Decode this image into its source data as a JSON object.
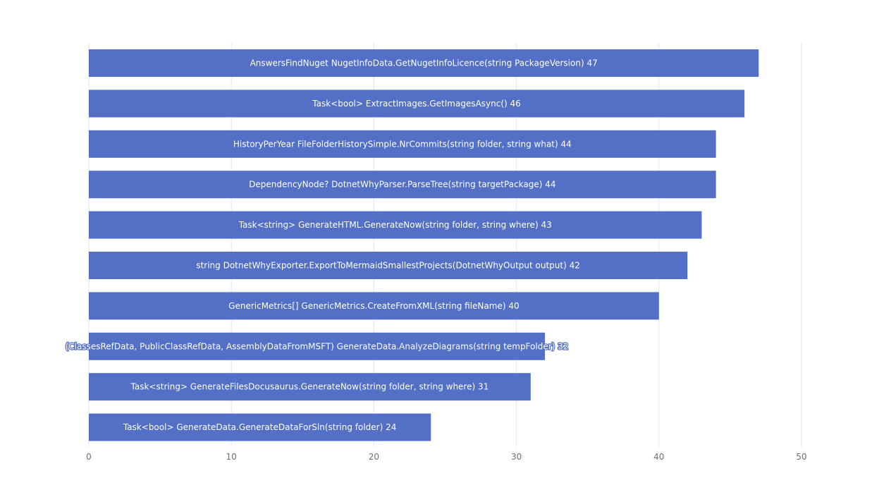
{
  "chart_data": {
    "type": "bar",
    "orientation": "horizontal",
    "title": "",
    "xlabel": "",
    "ylabel": "",
    "xlim": [
      0,
      50
    ],
    "x_ticks": [
      "0",
      "10",
      "20",
      "30",
      "40",
      "50"
    ],
    "grid": true,
    "bar_color": "#5470c6",
    "categories": [
      "AnswersFindNuget NugetInfoData.GetNugetInfoLicence(string PackageVersion)",
      "Task<bool> ExtractImages.GetImagesAsync()",
      "HistoryPerYear FileFolderHistorySimple.NrCommits(string folder, string what)",
      "DependencyNode? DotnetWhyParser.ParseTree(string targetPackage)",
      "Task<string> GenerateHTML.GenerateNow(string folder, string where)",
      "string DotnetWhyExporter.ExportToMermaidSmallestProjects(DotnetWhyOutput output)",
      "GenericMetrics[] GenericMetrics.CreateFromXML(string fileName)",
      "(ClassesRefData, PublicClassRefData, AssemblyDataFromMSFT) GenerateData.AnalyzeDiagrams(string tempFolder)",
      "Task<string> GenerateFilesDocusaurus.GenerateNow(string folder, string where)",
      "Task<bool> GenerateData.GenerateDataForSln(string folder)"
    ],
    "values": [
      47,
      46,
      44,
      44,
      43,
      42,
      40,
      32,
      31,
      24
    ]
  }
}
